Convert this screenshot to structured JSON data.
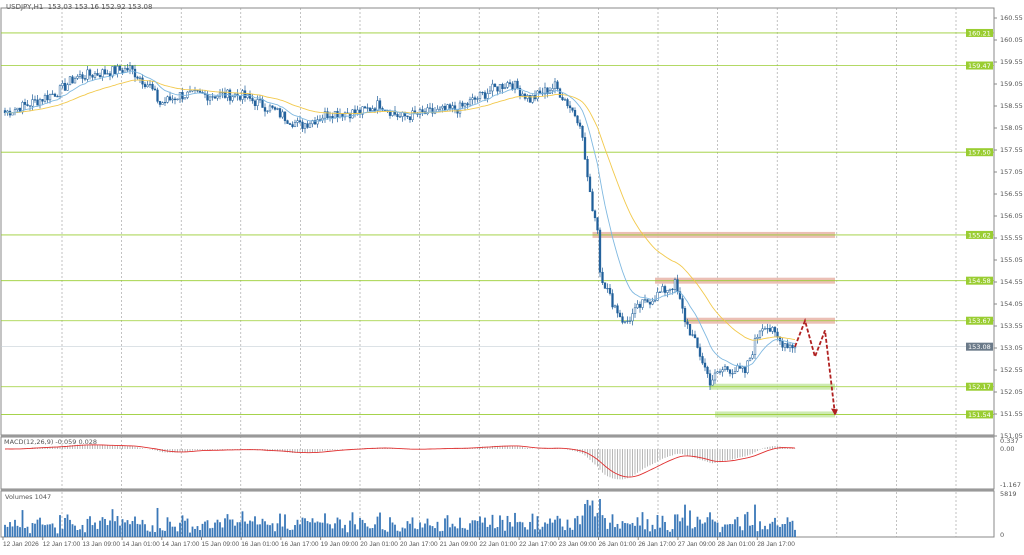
{
  "header": {
    "symbol": "USDJPY,H1",
    "ohlc": "153.03 153.16 152.92 153.08"
  },
  "colors": {
    "up": "#1f5f9a",
    "bull_body": "#ffffff",
    "ema_fast": "#7fb8e0",
    "ema_slow": "#f2c94c",
    "level": "#9acd32",
    "resistance_zone": "#e8b4a8",
    "support_zone": "#c5e8a5",
    "current": "#6b7a89",
    "macd_hist": "#b0b0b0",
    "macd_signal": "#e03030",
    "volume": "#3a78b8",
    "forecast_arrow": "#b02020"
  },
  "chart_data": {
    "type": "candlestick",
    "price_axis_ticks": [
      "160.55",
      "160.05",
      "159.55",
      "159.05",
      "158.55",
      "158.05",
      "157.55",
      "157.05",
      "156.55",
      "156.05",
      "155.55",
      "155.05",
      "154.55",
      "154.05",
      "153.55",
      "153.05",
      "152.55",
      "152.05",
      "151.55",
      "151.05"
    ],
    "ylim": [
      150.9,
      160.75
    ],
    "time_labels": [
      "12 Jan 2026",
      "12 Jan 17:00",
      "13 Jan 09:00",
      "14 Jan 01:00",
      "14 Jan 17:00",
      "15 Jan 09:00",
      "16 Jan 01:00",
      "16 Jan 17:00",
      "19 Jan 09:00",
      "20 Jan 01:00",
      "20 Jan 17:00",
      "21 Jan 09:00",
      "22 Jan 01:00",
      "22 Jan 17:00",
      "23 Jan 09:00",
      "26 Jan 01:00",
      "26 Jan 17:00",
      "27 Jan 09:00",
      "28 Jan 01:00",
      "28 Jan 17:00"
    ],
    "close_path_hours_price": [
      [
        0,
        158.4
      ],
      [
        10,
        158.6
      ],
      [
        22,
        158.9
      ],
      [
        28,
        159.2
      ],
      [
        38,
        159.3
      ],
      [
        50,
        159.4
      ],
      [
        58,
        159.0
      ],
      [
        62,
        158.6
      ],
      [
        70,
        158.8
      ],
      [
        82,
        158.8
      ],
      [
        94,
        158.8
      ],
      [
        106,
        158.5
      ],
      [
        118,
        158.1
      ],
      [
        130,
        158.4
      ],
      [
        142,
        158.4
      ],
      [
        150,
        158.6
      ],
      [
        158,
        158.3
      ],
      [
        170,
        158.4
      ],
      [
        182,
        158.5
      ],
      [
        194,
        158.9
      ],
      [
        202,
        159.1
      ],
      [
        210,
        158.7
      ],
      [
        220,
        159.0
      ],
      [
        224,
        158.7
      ],
      [
        230,
        158.2
      ],
      [
        234,
        156.5
      ],
      [
        237,
        155.8
      ],
      [
        238,
        154.8
      ],
      [
        242,
        154.2
      ],
      [
        248,
        153.6
      ],
      [
        254,
        154.0
      ],
      [
        262,
        154.3
      ],
      [
        268,
        154.5
      ],
      [
        272,
        153.7
      ],
      [
        278,
        152.9
      ],
      [
        282,
        152.3
      ],
      [
        288,
        152.6
      ],
      [
        296,
        152.5
      ],
      [
        302,
        153.5
      ],
      [
        304,
        153.6
      ],
      [
        310,
        153.2
      ],
      [
        316,
        153.08
      ]
    ],
    "levels": [
      {
        "price": 160.21,
        "label": "160.21"
      },
      {
        "price": 159.47,
        "label": "159.47"
      },
      {
        "price": 157.5,
        "label": "157.50"
      },
      {
        "price": 155.62,
        "label": "155.62",
        "zone": "resistance",
        "from_hour": 235
      },
      {
        "price": 154.58,
        "label": "154.58",
        "zone": "resistance",
        "from_hour": 260
      },
      {
        "price": 153.67,
        "label": "153.67",
        "zone": "resistance",
        "from_hour": 272
      },
      {
        "price": 152.17,
        "label": "152.17",
        "zone": "support",
        "from_hour": 282
      },
      {
        "price": 151.54,
        "label": "151.54",
        "zone": "support",
        "from_hour": 284
      }
    ],
    "current_price": {
      "price": 153.08,
      "label": "153.08"
    },
    "forecast_path": [
      [
        316,
        153.08
      ],
      [
        320,
        153.67
      ],
      [
        324,
        152.85
      ],
      [
        328,
        153.45
      ],
      [
        332,
        151.54
      ]
    ],
    "macd": {
      "label": "MACD(12,26,9) -0.059 0.028",
      "ticks": [
        "0.337",
        "0.00",
        "-1.167"
      ]
    },
    "volumes": {
      "label": "Volumes 1047",
      "ticks": [
        "5819",
        "0"
      ]
    }
  }
}
